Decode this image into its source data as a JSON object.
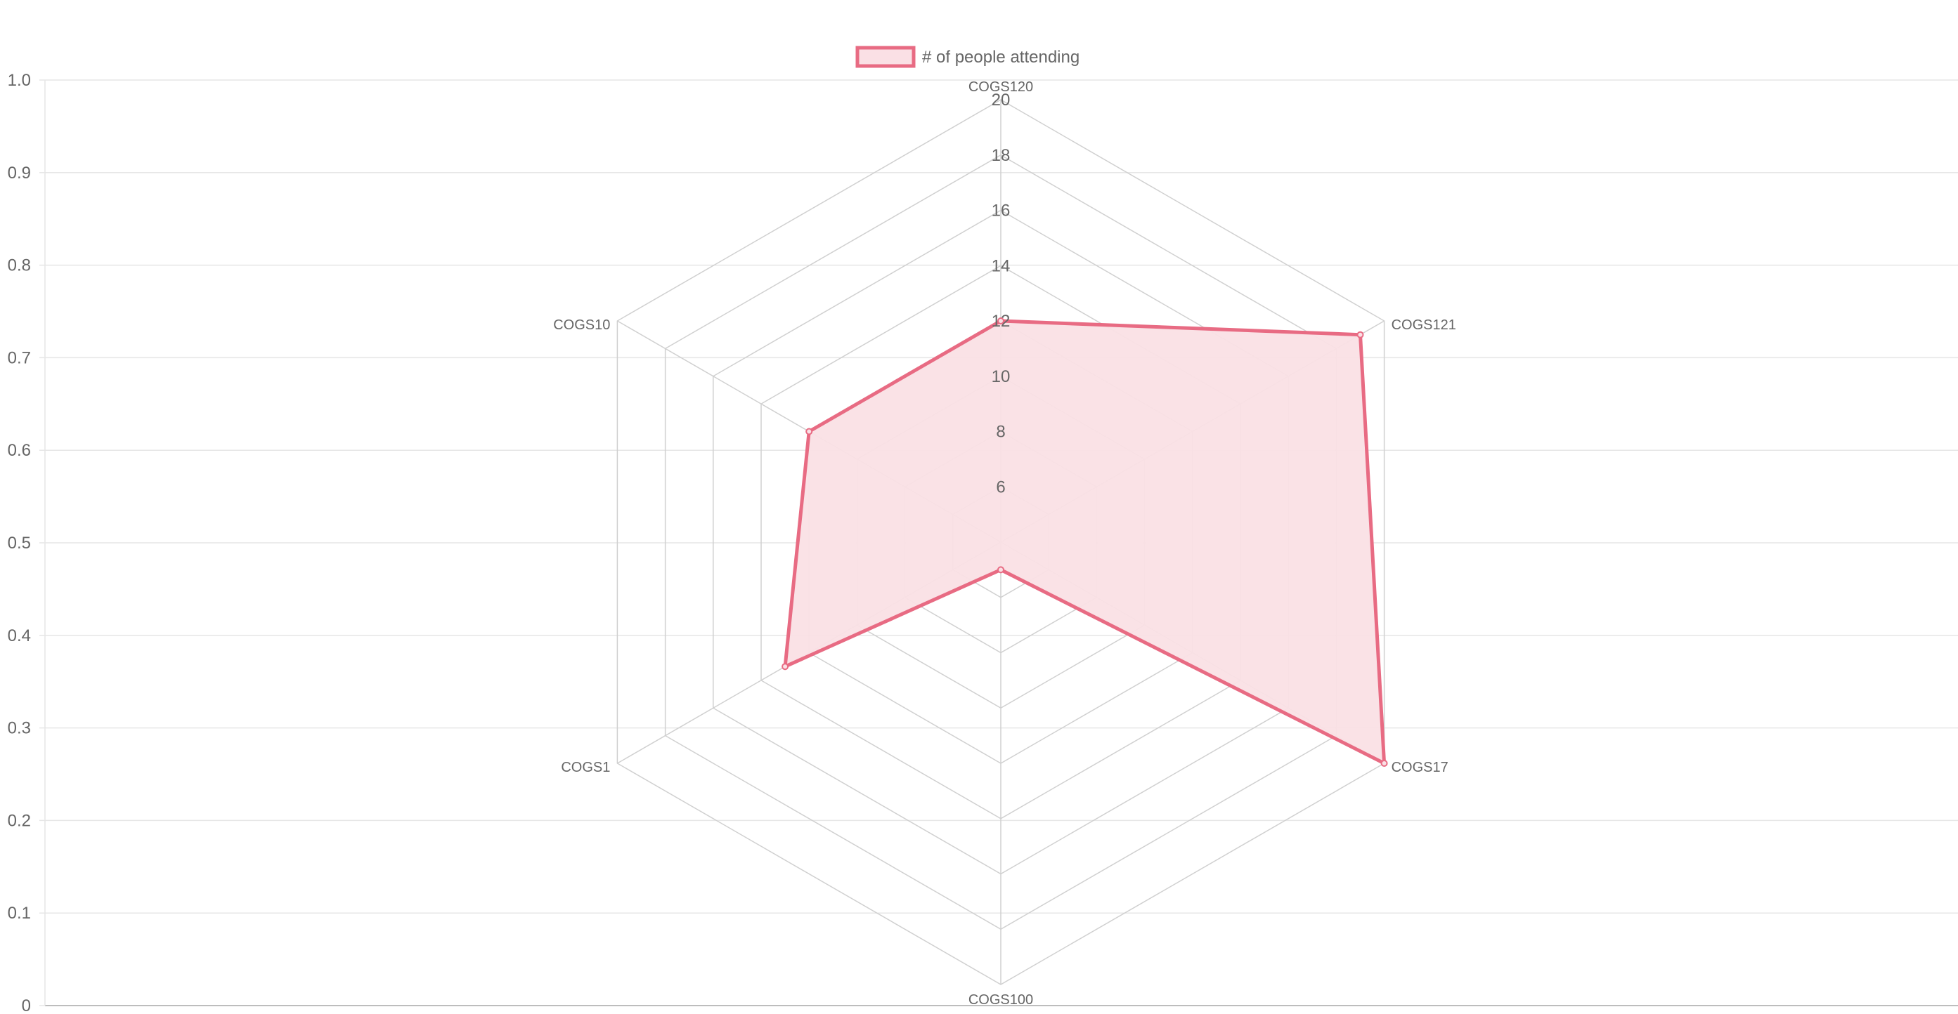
{
  "chart_data": {
    "type": "radar",
    "legend": {
      "position": "top",
      "entries": [
        {
          "label": "# of people attending",
          "border_color": "#e86b83",
          "fill_color": "#fae0e5"
        }
      ]
    },
    "labels": [
      "COGS120",
      "COGS121",
      "COGS17",
      "COGS100",
      "COGS1",
      "COGS10"
    ],
    "series": [
      {
        "name": "# of people attending",
        "values": [
          12,
          19,
          20,
          5,
          13,
          12
        ]
      }
    ],
    "radial_axis": {
      "min": 4,
      "max": 20,
      "tick_labels": [
        "6",
        "8",
        "10",
        "12",
        "14",
        "16",
        "18",
        "20"
      ],
      "tick_values": [
        6,
        8,
        10,
        12,
        14,
        16,
        18,
        20
      ]
    },
    "y_axis": {
      "min": 0,
      "max": 1.0,
      "tick_labels": [
        "0",
        "0.1",
        "0.2",
        "0.3",
        "0.4",
        "0.5",
        "0.6",
        "0.7",
        "0.8",
        "0.9",
        "1.0"
      ],
      "grid": true
    },
    "colors": {
      "border": "#e86b83",
      "fill": "#fae0e5",
      "grid": "#e6e6e6",
      "radar_grid": "#d0d0d0",
      "text": "#666666"
    }
  }
}
